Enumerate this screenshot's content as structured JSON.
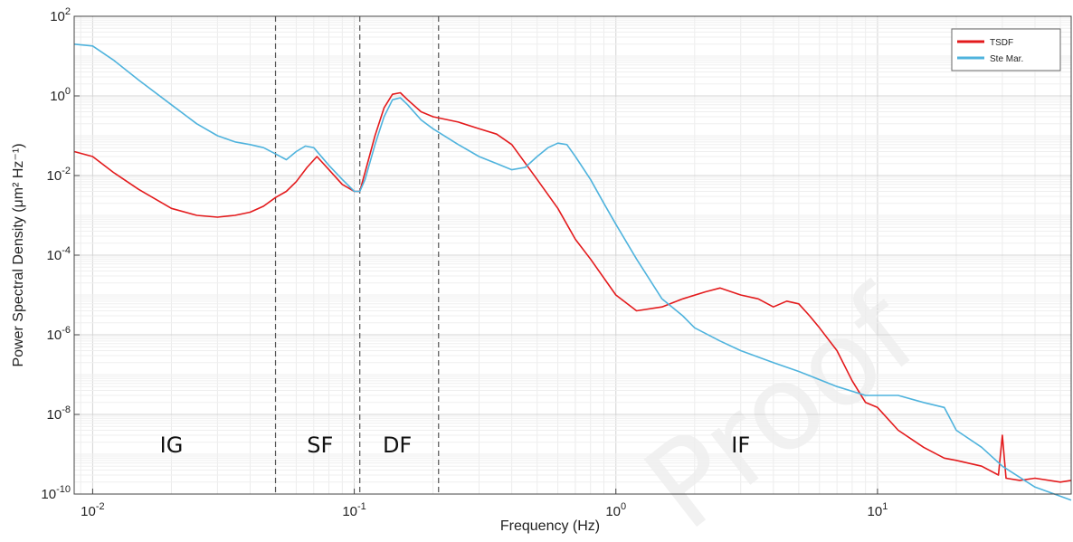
{
  "chart_data": {
    "type": "line",
    "title": "",
    "xlabel": "Frequency (Hz)",
    "ylabel": "Power Spectral Density (μm² Hz⁻¹)",
    "xscale": "log",
    "yscale": "log",
    "xlim": [
      0.0085,
      55
    ],
    "ylim": [
      1e-10,
      100
    ],
    "grid": true,
    "legend_position": "top-right",
    "x_ticks": [
      {
        "value": 0.01,
        "base": "10",
        "exp": "-2"
      },
      {
        "value": 0.1,
        "base": "10",
        "exp": "-1"
      },
      {
        "value": 1,
        "base": "10",
        "exp": "0"
      },
      {
        "value": 10,
        "base": "10",
        "exp": "1"
      }
    ],
    "y_ticks": [
      {
        "value": 1e-10,
        "base": "10",
        "exp": "-10"
      },
      {
        "value": 1e-08,
        "base": "10",
        "exp": "-8"
      },
      {
        "value": 1e-06,
        "base": "10",
        "exp": "-6"
      },
      {
        "value": 0.0001,
        "base": "10",
        "exp": "-4"
      },
      {
        "value": 0.01,
        "base": "10",
        "exp": "-2"
      },
      {
        "value": 1,
        "base": "10",
        "exp": "0"
      },
      {
        "value": 100,
        "base": "10",
        "exp": "2"
      }
    ],
    "vlines": [
      0.05,
      0.105,
      0.21
    ],
    "bands": [
      {
        "label": "IG",
        "x": 0.02
      },
      {
        "label": "SF",
        "x": 0.074
      },
      {
        "label": "DF",
        "x": 0.146
      },
      {
        "label": "IF",
        "x": 3.0
      }
    ],
    "series": [
      {
        "name": "TSDF",
        "color": "#e31a1c",
        "x": [
          0.0085,
          0.01,
          0.012,
          0.015,
          0.02,
          0.025,
          0.03,
          0.035,
          0.04,
          0.045,
          0.05,
          0.055,
          0.06,
          0.066,
          0.072,
          0.08,
          0.09,
          0.1,
          0.105,
          0.11,
          0.12,
          0.13,
          0.14,
          0.15,
          0.16,
          0.18,
          0.2,
          0.25,
          0.3,
          0.35,
          0.4,
          0.5,
          0.6,
          0.7,
          0.8,
          1.0,
          1.2,
          1.5,
          1.8,
          2.2,
          2.5,
          3.0,
          3.5,
          4.0,
          4.5,
          5.0,
          5.5,
          6.0,
          7.0,
          8.0,
          9.0,
          10.0,
          12.0,
          15.0,
          18.0,
          20.0,
          25.0,
          29.0,
          30.0,
          31.0,
          35.0,
          40.0,
          50.0,
          55.0
        ],
        "y": [
          0.04,
          0.03,
          0.012,
          0.0045,
          0.0015,
          0.001,
          0.0009,
          0.001,
          0.0012,
          0.0017,
          0.0028,
          0.004,
          0.007,
          0.016,
          0.03,
          0.014,
          0.006,
          0.004,
          0.004,
          0.012,
          0.1,
          0.5,
          1.1,
          1.2,
          0.8,
          0.4,
          0.3,
          0.22,
          0.15,
          0.11,
          0.06,
          0.008,
          0.0015,
          0.00025,
          8e-05,
          1e-05,
          4e-06,
          5e-06,
          8e-06,
          1.2e-05,
          1.5e-05,
          1e-05,
          8e-06,
          5e-06,
          7e-06,
          6e-06,
          3e-06,
          1.5e-06,
          4e-07,
          7e-08,
          2e-08,
          1.5e-08,
          4e-09,
          1.5e-09,
          8e-10,
          7e-10,
          5e-10,
          3e-10,
          3e-09,
          2.5e-10,
          2.2e-10,
          2.5e-10,
          2e-10,
          2.2e-10
        ]
      },
      {
        "name": "Ste Mar.",
        "color": "#4fb3dd",
        "x": [
          0.0085,
          0.01,
          0.012,
          0.015,
          0.02,
          0.025,
          0.03,
          0.035,
          0.04,
          0.045,
          0.05,
          0.055,
          0.06,
          0.065,
          0.07,
          0.08,
          0.09,
          0.1,
          0.105,
          0.11,
          0.12,
          0.13,
          0.14,
          0.15,
          0.16,
          0.18,
          0.2,
          0.25,
          0.3,
          0.35,
          0.4,
          0.45,
          0.5,
          0.55,
          0.6,
          0.65,
          0.7,
          0.8,
          0.9,
          1.0,
          1.2,
          1.5,
          1.8,
          2.0,
          2.5,
          3.0,
          4.0,
          5.0,
          7.0,
          9.0,
          10.0,
          12.0,
          15.0,
          18.0,
          20.0,
          25.0,
          30.0,
          40.0,
          55.0
        ],
        "y": [
          20,
          18,
          8,
          2.5,
          0.6,
          0.2,
          0.1,
          0.07,
          0.06,
          0.05,
          0.035,
          0.025,
          0.04,
          0.055,
          0.05,
          0.018,
          0.008,
          0.004,
          0.004,
          0.008,
          0.06,
          0.3,
          0.8,
          0.9,
          0.6,
          0.25,
          0.15,
          0.06,
          0.03,
          0.02,
          0.014,
          0.016,
          0.03,
          0.05,
          0.065,
          0.06,
          0.03,
          0.008,
          0.002,
          0.0006,
          8e-05,
          8e-06,
          3e-06,
          1.5e-06,
          7e-07,
          4e-07,
          2e-07,
          1.2e-07,
          5e-08,
          3e-08,
          3e-08,
          3e-08,
          2e-08,
          1.5e-08,
          4e-09,
          1.5e-09,
          5e-10,
          1.5e-10,
          7e-11
        ]
      }
    ]
  }
}
